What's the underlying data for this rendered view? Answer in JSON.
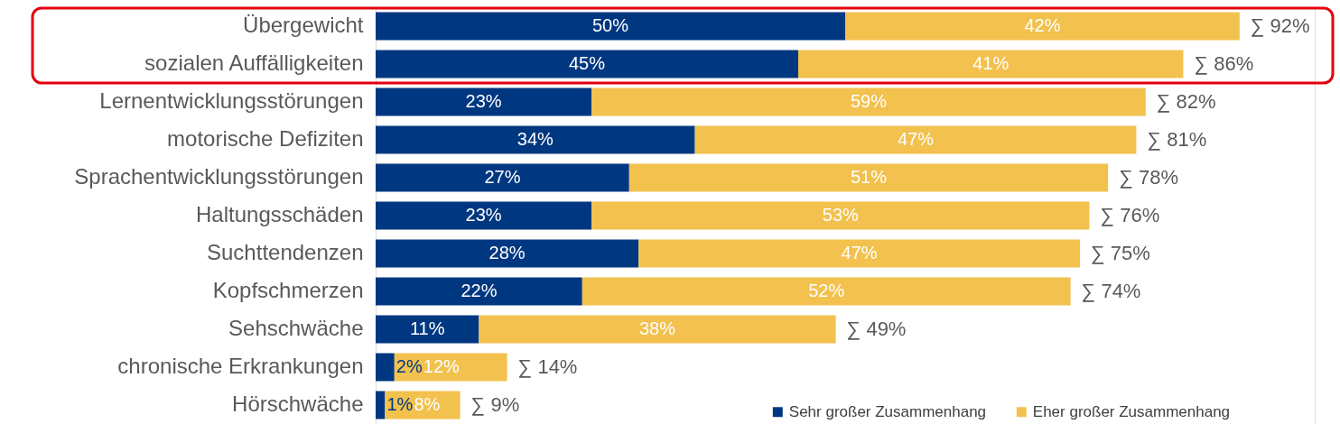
{
  "chart_data": {
    "type": "bar",
    "orientation": "horizontal",
    "stacked": true,
    "categories": [
      "Übergewicht",
      "sozialen Auffälligkeiten",
      "Lernentwicklungsstörungen",
      "motorische Defiziten",
      "Sprachentwicklungsstörungen",
      "Haltungsschäden",
      "Suchttendenzen",
      "Kopfschmerzen",
      "Sehschwäche",
      "chronische Erkrankungen",
      "Hörschwäche"
    ],
    "series": [
      {
        "name": "Sehr großer Zusammenhang",
        "color": "#003781",
        "values": [
          50,
          45,
          23,
          34,
          27,
          23,
          28,
          22,
          11,
          2,
          1
        ],
        "value_labels": [
          "50%",
          "45%",
          "23%",
          "34%",
          "27%",
          "23%",
          "28%",
          "22%",
          "11%",
          "2%",
          "1%"
        ]
      },
      {
        "name": "Eher großer Zusammenhang",
        "color": "#f2c14e",
        "values": [
          42,
          41,
          59,
          47,
          51,
          53,
          47,
          52,
          38,
          12,
          8
        ],
        "value_labels": [
          "42%",
          "41%",
          "59%",
          "47%",
          "51%",
          "53%",
          "47%",
          "52%",
          "38%",
          "12%",
          "8%"
        ]
      }
    ],
    "totals": [
      "∑ 92%",
      "∑ 86%",
      "∑ 82%",
      "∑ 81%",
      "∑ 78%",
      "∑ 76%",
      "∑ 75%",
      "∑ 74%",
      "∑ 49%",
      "∑ 14%",
      "∑ 9%"
    ],
    "xlim": [
      0,
      100
    ],
    "legend": "bottom right",
    "grid": false
  }
}
